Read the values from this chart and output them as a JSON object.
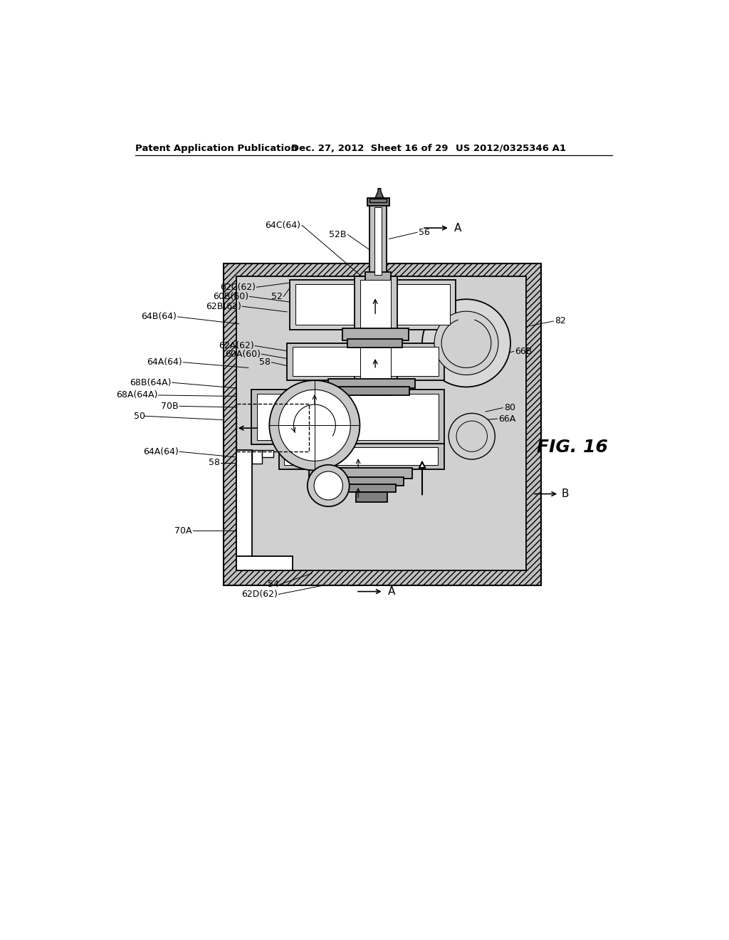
{
  "header_left": "Patent Application Publication",
  "header_mid": "Dec. 27, 2012  Sheet 16 of 29",
  "header_right": "US 2012/0325346 A1",
  "fig_label": "FIG. 16",
  "bg_color": "#ffffff",
  "lc": "#000000",
  "hatch_fill": "#c8c8c8",
  "inner_fill": "#d8d8d8",
  "mid_gray": "#a0a0a0",
  "dark_gray": "#707070",
  "light_gray": "#e8e8e8"
}
